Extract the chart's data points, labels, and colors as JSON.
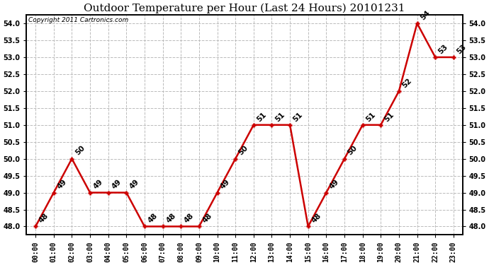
{
  "title": "Outdoor Temperature per Hour (Last 24 Hours) 20101231",
  "copyright_text": "Copyright 2011 Cartronics.com",
  "hours": [
    "00:00",
    "01:00",
    "02:00",
    "03:00",
    "04:00",
    "05:00",
    "06:00",
    "07:00",
    "08:00",
    "09:00",
    "10:00",
    "11:00",
    "12:00",
    "13:00",
    "14:00",
    "15:00",
    "16:00",
    "17:00",
    "18:00",
    "19:00",
    "20:00",
    "21:00",
    "22:00",
    "23:00"
  ],
  "temperatures": [
    48,
    49,
    50,
    49,
    49,
    49,
    48,
    48,
    48,
    48,
    49,
    50,
    51,
    51,
    51,
    48,
    49,
    50,
    51,
    51,
    52,
    54,
    53,
    53
  ],
  "line_color": "#cc0000",
  "marker": "+",
  "marker_size": 5,
  "marker_color": "#cc0000",
  "bg_color": "#ffffff",
  "grid_color": "#bbbbbb",
  "ylim_min": 47.75,
  "ylim_max": 54.25,
  "ytick_min": 48.0,
  "ytick_max": 54.0,
  "ytick_step": 0.5,
  "title_fontsize": 11,
  "label_fontsize": 7,
  "annotation_fontsize": 7.5,
  "copyright_fontsize": 6.5
}
